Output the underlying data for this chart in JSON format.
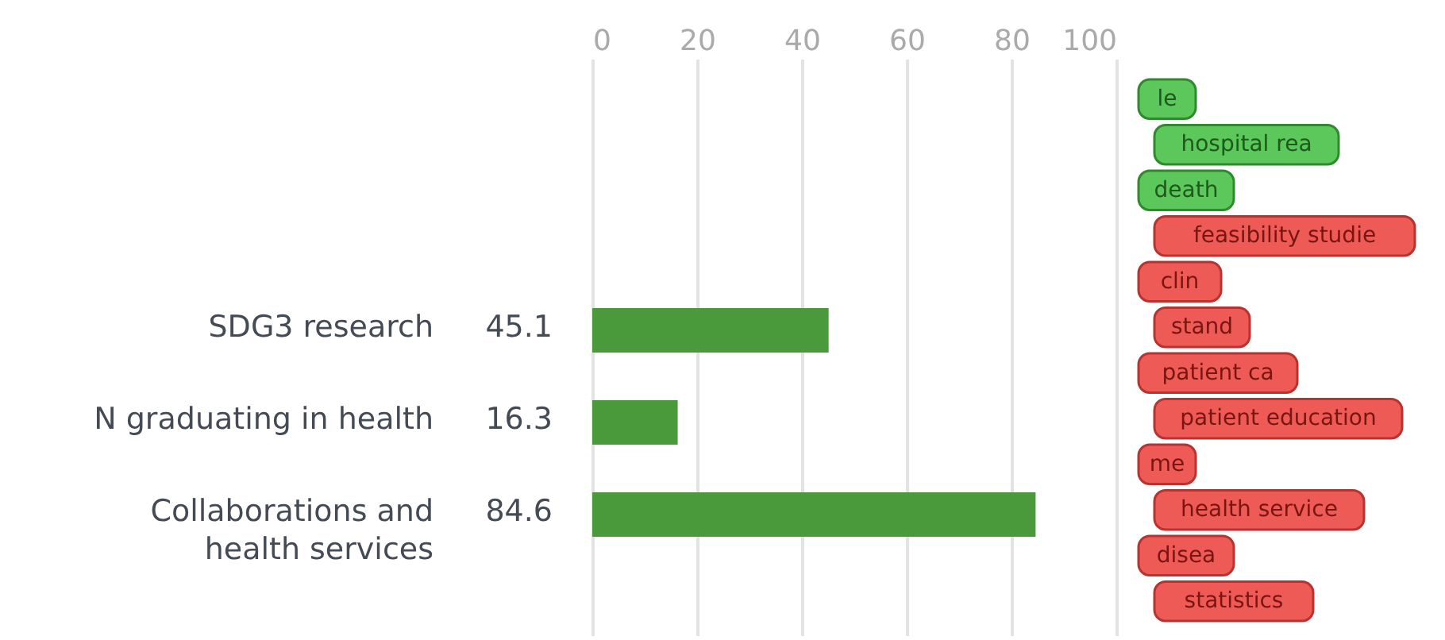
{
  "chart_data": {
    "type": "bar",
    "orientation": "horizontal",
    "categories": [
      "SDG3 research",
      "N graduating in health",
      "Collaborations and health services"
    ],
    "values": [
      45.1,
      16.3,
      84.6
    ],
    "color": "#4a9a3b",
    "data_labels": true,
    "x2lim": [
      0,
      100
    ],
    "x2ticks": [
      0,
      20,
      40,
      60,
      80,
      100
    ],
    "grid": "x",
    "annotations": [
      "le",
      "hospital rea",
      "death",
      "feasibility studie",
      "clin",
      "stand",
      "patient ca",
      "patient education",
      "me",
      "health service",
      "disea",
      "statistics"
    ]
  }
}
